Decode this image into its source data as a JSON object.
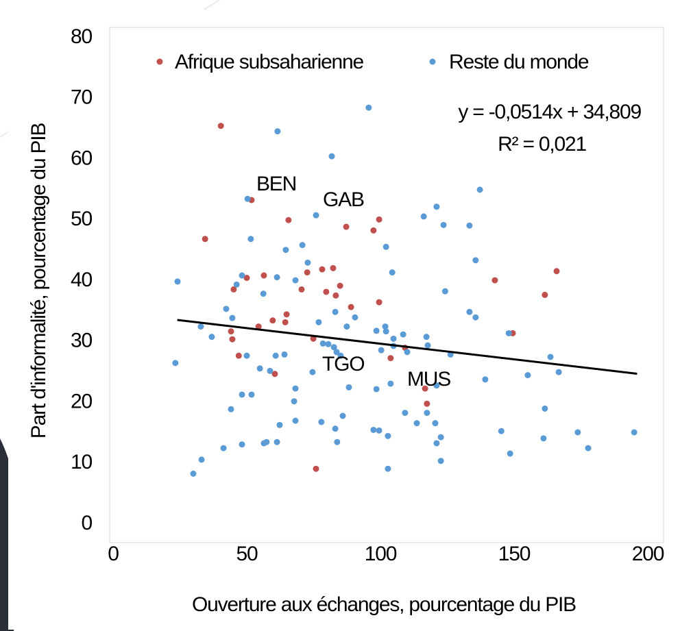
{
  "chart_data": {
    "type": "scatter",
    "x_label": "Ouverture aux échanges, pourcentage du PIB",
    "y_label": "Part d'informalité,  pourcentage du PIB",
    "xlim": [
      0,
      200
    ],
    "xticks": [
      0,
      50,
      100,
      150,
      200
    ],
    "ylim": [
      0,
      80
    ],
    "yticks": [
      0,
      10,
      20,
      30,
      40,
      50,
      60,
      70,
      80
    ],
    "grid": false,
    "legend": "top",
    "series": [
      {
        "name": "Afrique subsaharienne",
        "color": "#c0504d",
        "x": [
          40.3,
          34.4,
          51.8,
          65.6,
          87.2,
          99.5,
          97.4,
          45.1,
          56.4,
          50.0,
          72.6,
          78.2,
          82.3,
          70.5,
          84.9,
          79.7,
          83.3,
          99.5,
          89.0,
          64.9,
          59.7,
          64.4,
          44.1,
          54.4,
          44.6,
          74.9,
          47.0,
          60.5,
          103.8,
          109.2,
          116.7,
          117.4,
          75.9,
          142.8,
          161.5,
          165.9,
          149.5
        ],
        "values": [
          65.5,
          46.9,
          53.3,
          50.0,
          48.9,
          50.1,
          48.3,
          38.6,
          40.9,
          40.5,
          41.4,
          41.9,
          42.1,
          38.6,
          39.2,
          38.2,
          37.6,
          36.5,
          35.7,
          34.5,
          33.5,
          33.2,
          31.7,
          32.5,
          30.4,
          30.5,
          27.7,
          24.7,
          27.3,
          29.0,
          22.3,
          19.8,
          9.1,
          40.1,
          37.7,
          41.6,
          31.4
        ]
      },
      {
        "name": "Reste du monde",
        "color": "#5b9bd5",
        "x": [
          24.1,
          50.3,
          61.5,
          81.8,
          95.6,
          137.2,
          121.0,
          116.2,
          75.9,
          133.3,
          123.6,
          51.5,
          70.8,
          64.6,
          102.1,
          72.8,
          135.6,
          48.2,
          61.3,
          68.2,
          46.2,
          104.4,
          56.2,
          124.2,
          42.3,
          83.1,
          133.3,
          135.6,
          90.5,
          44.6,
          76.9,
          32.8,
          36.9,
          101.8,
          98.5,
          102.1,
          104.9,
          108.5,
          87.4,
          117.2,
          148.0,
          78.5,
          80.5,
          82.6,
          83.6,
          100.3,
          104.9,
          110.0,
          117.7,
          126.2,
          50.0,
          60.8,
          64.1,
          85.1,
          163.6,
          23.3,
          54.9,
          58.7,
          74.6,
          166.7,
          139.2,
          155.1,
          68.2,
          88.2,
          98.5,
          103.8,
          121.0,
          48.2,
          51.8,
          67.7,
          44.1,
          161.5,
          85.9,
          109.2,
          117.4,
          120.5,
          77.9,
          68.2,
          62.3,
          113.6,
          83.1,
          97.4,
          99.5,
          145.2,
          173.8,
          194.9,
          102.8,
          122.6,
          161.0,
          56.4,
          57.4,
          61.3,
          83.8,
          121.0,
          48.2,
          41.3,
          177.7,
          148.5,
          33.1,
          122.6,
          102.8,
          30.0
        ],
        "values": [
          39.9,
          53.5,
          64.6,
          60.5,
          68.5,
          55.0,
          52.2,
          50.6,
          50.8,
          49.1,
          49.2,
          46.9,
          45.9,
          45.1,
          45.6,
          43.0,
          43.4,
          40.9,
          40.6,
          40.1,
          39.4,
          41.4,
          37.9,
          38.3,
          35.4,
          34.9,
          34.9,
          34.0,
          34.0,
          33.9,
          33.2,
          32.5,
          30.8,
          32.5,
          31.8,
          31.7,
          30.5,
          31.2,
          32.5,
          30.8,
          31.4,
          29.7,
          29.6,
          29.1,
          28.3,
          28.6,
          29.3,
          28.3,
          29.4,
          27.9,
          27.7,
          27.7,
          27.9,
          27.7,
          27.5,
          26.5,
          25.6,
          25.2,
          25.0,
          25.0,
          23.8,
          24.5,
          22.3,
          22.5,
          22.2,
          23.1,
          22.8,
          21.3,
          21.3,
          20.2,
          18.9,
          19.0,
          17.8,
          18.3,
          18.3,
          16.6,
          16.8,
          17.0,
          16.3,
          16.6,
          15.7,
          15.5,
          15.4,
          15.3,
          15.1,
          15.1,
          14.5,
          14.3,
          14.1,
          13.3,
          13.5,
          13.5,
          13.5,
          13.3,
          13.1,
          12.5,
          12.5,
          11.6,
          10.6,
          10.4,
          9.1,
          8.3
        ]
      }
    ],
    "trendline": {
      "equation": "y = -0,0514x + 34,809",
      "r2": "R² = 0,021",
      "slope": -0.0514,
      "intercept": 34.809,
      "x_range": [
        24,
        196
      ],
      "color": "#000000"
    },
    "annotations": [
      "BEN",
      "GAB",
      "TGO",
      "MUS"
    ]
  }
}
